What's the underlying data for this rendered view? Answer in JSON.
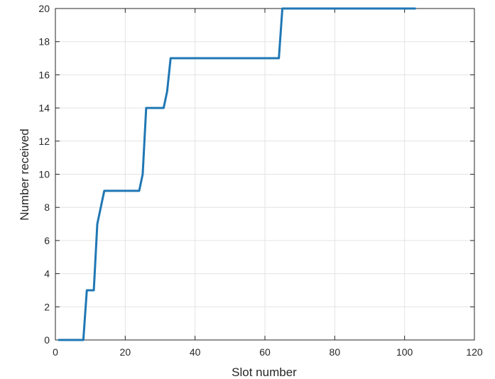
{
  "chart_data": {
    "type": "line",
    "title": "",
    "xlabel": "Slot number",
    "ylabel": "Number received",
    "xlim": [
      0,
      120
    ],
    "ylim": [
      0,
      20
    ],
    "xticks": [
      0,
      20,
      40,
      60,
      80,
      100,
      120
    ],
    "yticks": [
      0,
      2,
      4,
      6,
      8,
      10,
      12,
      14,
      16,
      18,
      20
    ],
    "grid": true,
    "series": [
      {
        "color": "#1f77b4",
        "x": [
          1,
          8,
          9,
          11,
          12,
          14,
          24,
          25,
          26,
          31,
          32,
          33,
          64,
          65,
          103
        ],
        "y": [
          0,
          0,
          3,
          3,
          7,
          9,
          9,
          10,
          14,
          14,
          15,
          17,
          17,
          20,
          20
        ]
      }
    ]
  }
}
